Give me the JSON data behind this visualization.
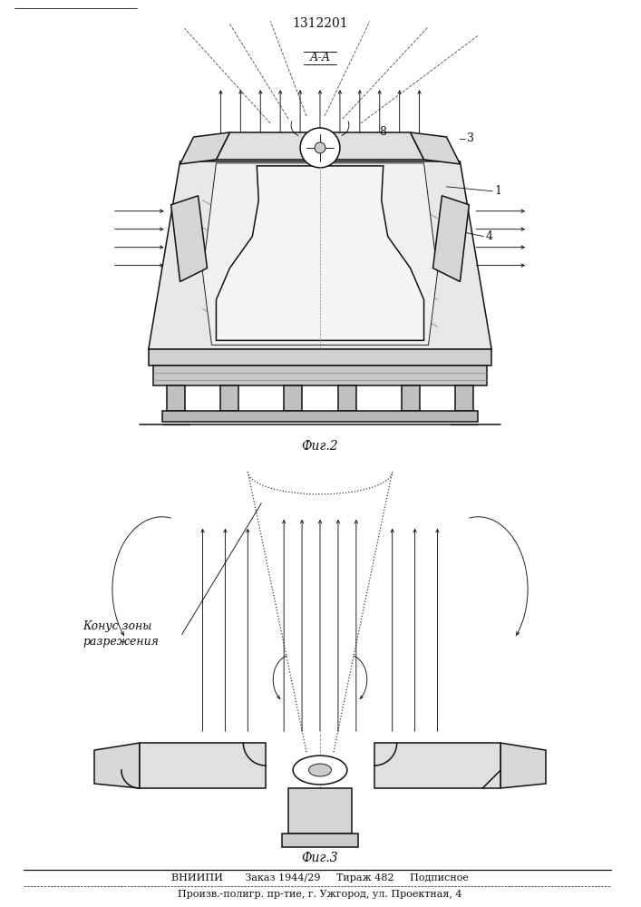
{
  "title": "1312201",
  "fig2_label": "Фиг.2",
  "fig3_label": "Фиг.3",
  "section_label": "А-А",
  "footer_line1": "ВНИИПИ       Заказ 1944/29     Тираж 482     Подписное",
  "footer_line2": "Произв.-полигр. пр-тие, г. Ужгород, ул. Проектная, 4",
  "label_1": "1",
  "label_3": "3",
  "label_4": "4",
  "label_8": "8",
  "label_cone": "Конус зоны\nразрежения",
  "bg_color": "#ffffff",
  "line_color": "#111111"
}
